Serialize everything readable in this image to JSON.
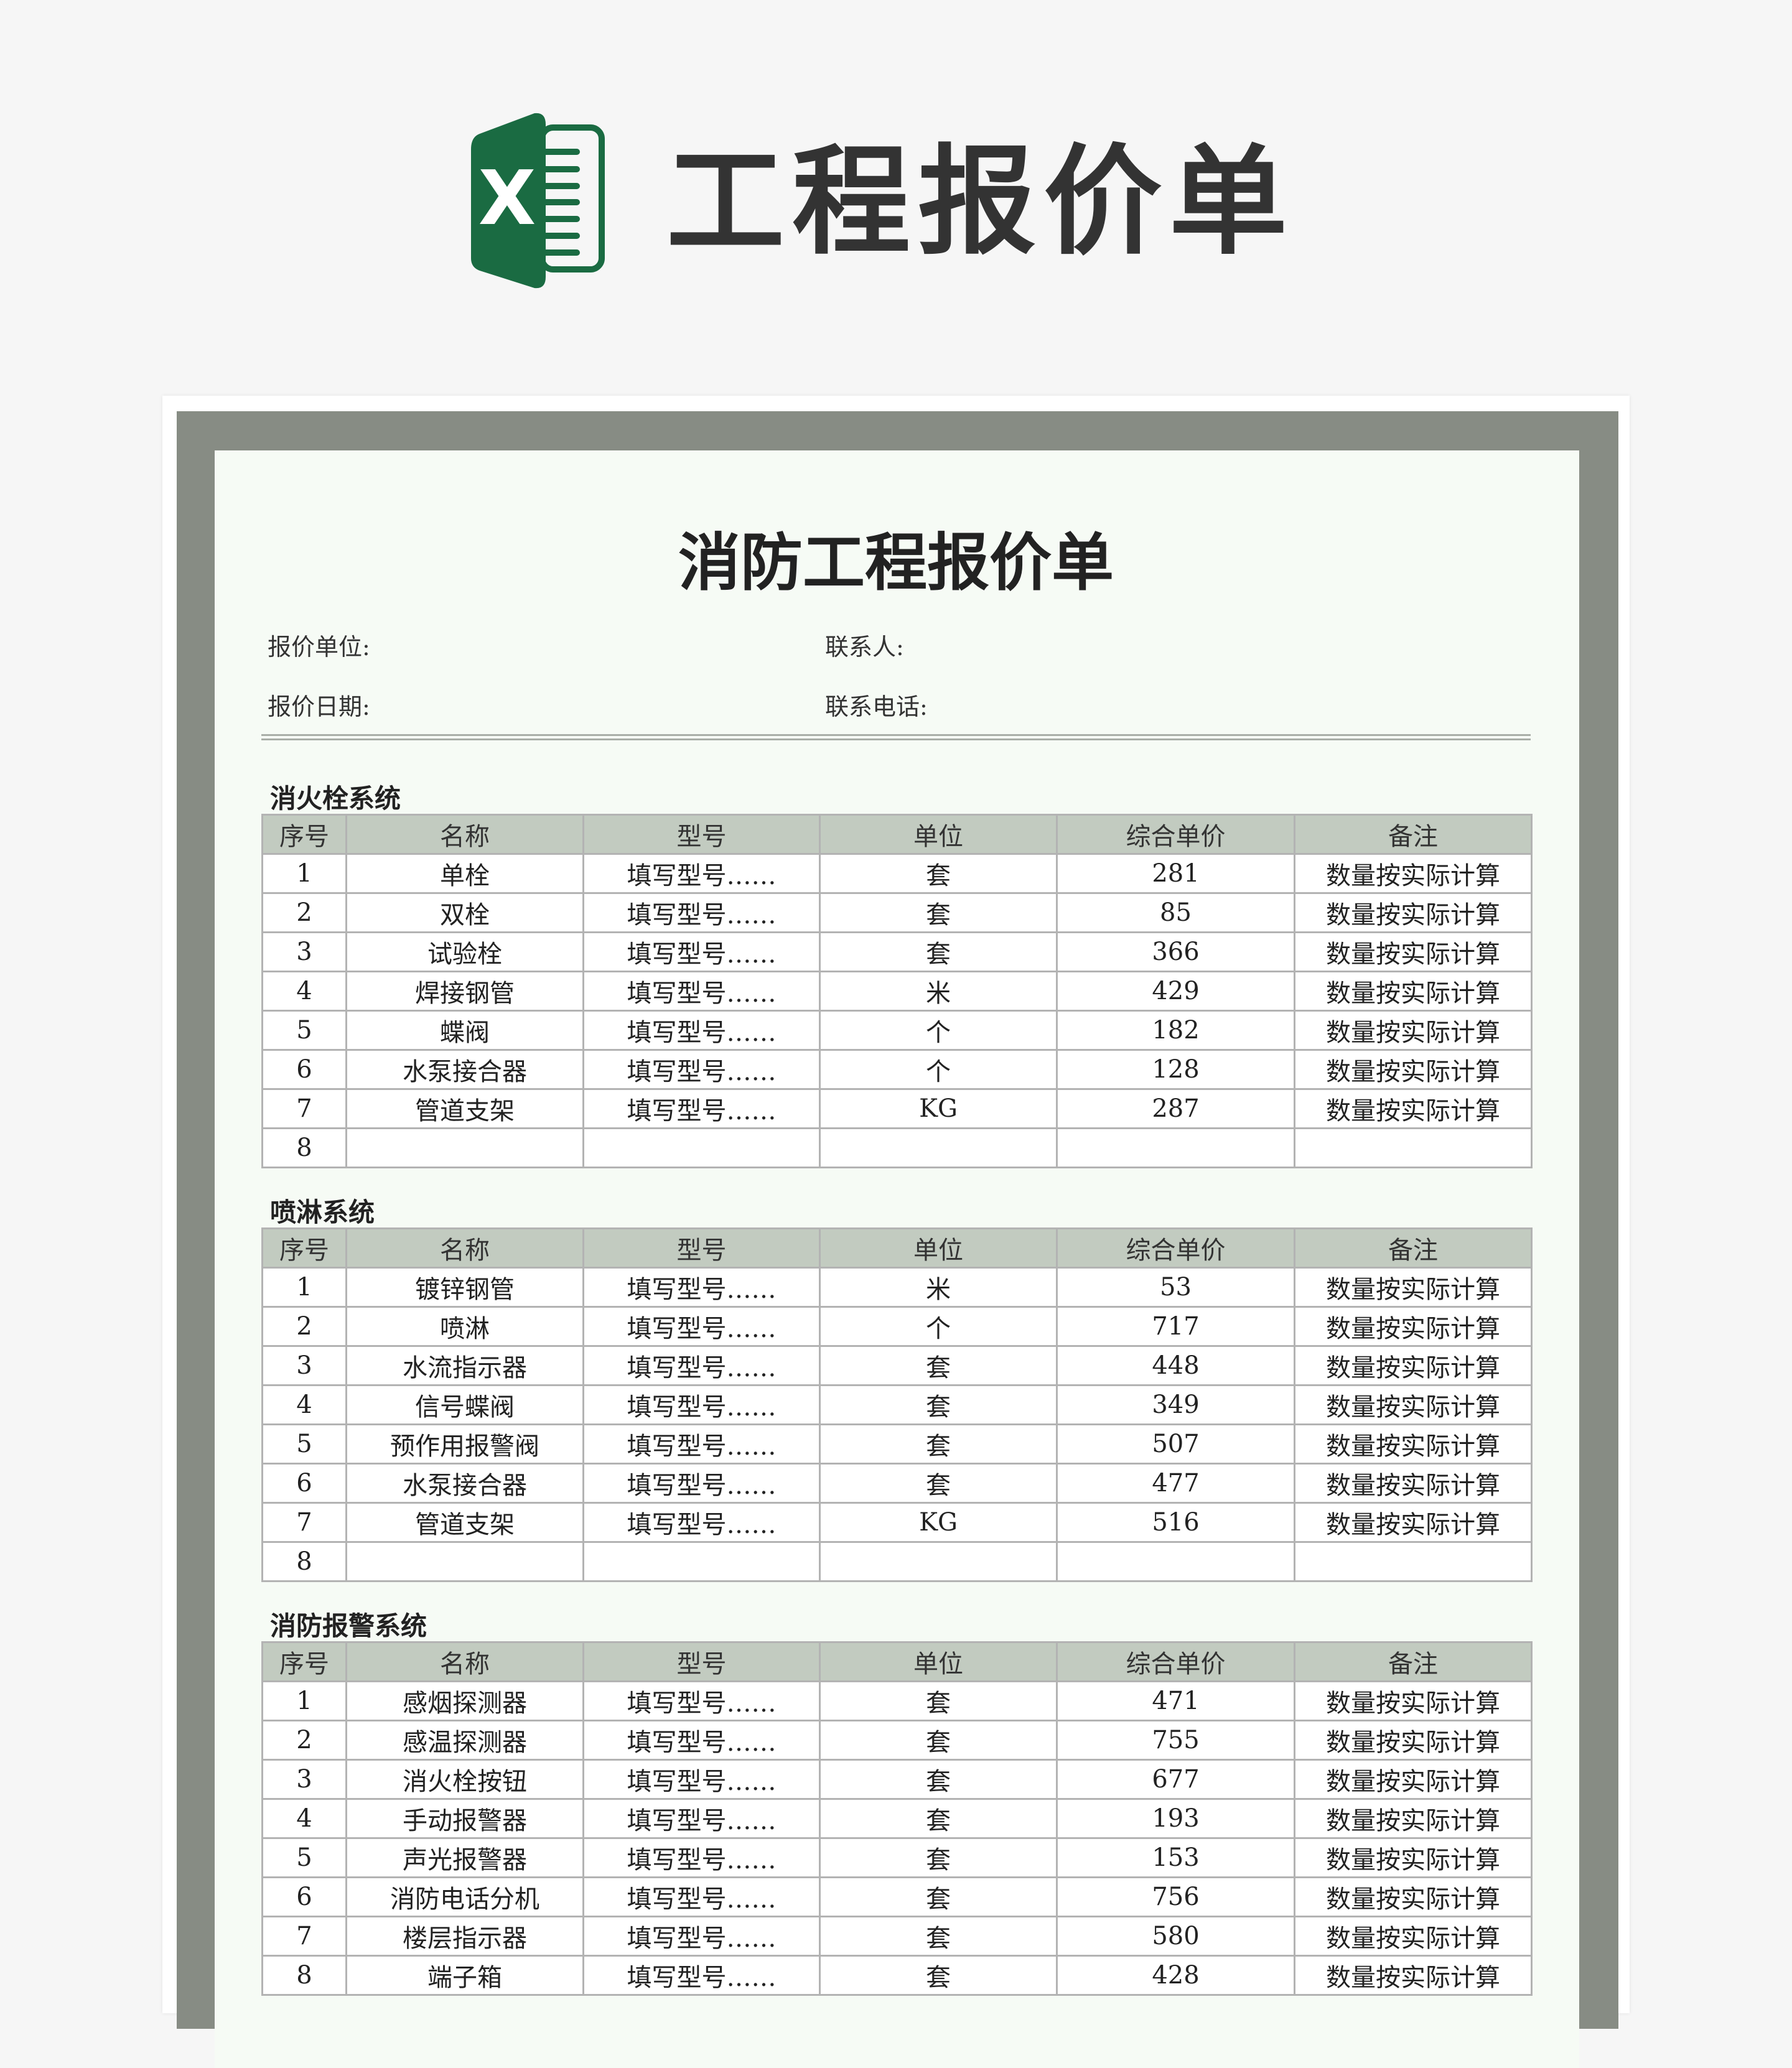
{
  "header": {
    "title": "工程报价单",
    "logo": "excel-icon",
    "logo_color": "#1a6b42"
  },
  "document": {
    "title": "消防工程报价单",
    "info": {
      "company_label": "报价单位:",
      "contact_label": "联系人:",
      "date_label": "报价日期:",
      "phone_label": "联系电话:"
    },
    "columns": [
      "序号",
      "名称",
      "型号",
      "单位",
      "综合单价",
      "备注"
    ],
    "sections": [
      {
        "title": "消火栓系统",
        "rows": [
          [
            "1",
            "单栓",
            "填写型号……",
            "套",
            "281",
            "数量按实际计算"
          ],
          [
            "2",
            "双栓",
            "填写型号……",
            "套",
            "85",
            "数量按实际计算"
          ],
          [
            "3",
            "试验栓",
            "填写型号……",
            "套",
            "366",
            "数量按实际计算"
          ],
          [
            "4",
            "焊接钢管",
            "填写型号……",
            "米",
            "429",
            "数量按实际计算"
          ],
          [
            "5",
            "蝶阀",
            "填写型号……",
            "个",
            "182",
            "数量按实际计算"
          ],
          [
            "6",
            "水泵接合器",
            "填写型号……",
            "个",
            "128",
            "数量按实际计算"
          ],
          [
            "7",
            "管道支架",
            "填写型号……",
            "KG",
            "287",
            "数量按实际计算"
          ],
          [
            "8",
            "",
            "",
            "",
            "",
            ""
          ]
        ]
      },
      {
        "title": "喷淋系统",
        "rows": [
          [
            "1",
            "镀锌钢管",
            "填写型号……",
            "米",
            "53",
            "数量按实际计算"
          ],
          [
            "2",
            "喷淋",
            "填写型号……",
            "个",
            "717",
            "数量按实际计算"
          ],
          [
            "3",
            "水流指示器",
            "填写型号……",
            "套",
            "448",
            "数量按实际计算"
          ],
          [
            "4",
            "信号蝶阀",
            "填写型号……",
            "套",
            "349",
            "数量按实际计算"
          ],
          [
            "5",
            "预作用报警阀",
            "填写型号……",
            "套",
            "507",
            "数量按实际计算"
          ],
          [
            "6",
            "水泵接合器",
            "填写型号……",
            "套",
            "477",
            "数量按实际计算"
          ],
          [
            "7",
            "管道支架",
            "填写型号……",
            "KG",
            "516",
            "数量按实际计算"
          ],
          [
            "8",
            "",
            "",
            "",
            "",
            ""
          ]
        ]
      },
      {
        "title": "消防报警系统",
        "rows": [
          [
            "1",
            "感烟探测器",
            "填写型号……",
            "套",
            "471",
            "数量按实际计算"
          ],
          [
            "2",
            "感温探测器",
            "填写型号……",
            "套",
            "755",
            "数量按实际计算"
          ],
          [
            "3",
            "消火栓按钮",
            "填写型号……",
            "套",
            "677",
            "数量按实际计算"
          ],
          [
            "4",
            "手动报警器",
            "填写型号……",
            "套",
            "193",
            "数量按实际计算"
          ],
          [
            "5",
            "声光报警器",
            "填写型号……",
            "套",
            "153",
            "数量按实际计算"
          ],
          [
            "6",
            "消防电话分机",
            "填写型号……",
            "套",
            "756",
            "数量按实际计算"
          ],
          [
            "7",
            "楼层指示器",
            "填写型号……",
            "套",
            "580",
            "数量按实际计算"
          ],
          [
            "8",
            "端子箱",
            "填写型号……",
            "套",
            "428",
            "数量按实际计算"
          ]
        ]
      }
    ]
  }
}
